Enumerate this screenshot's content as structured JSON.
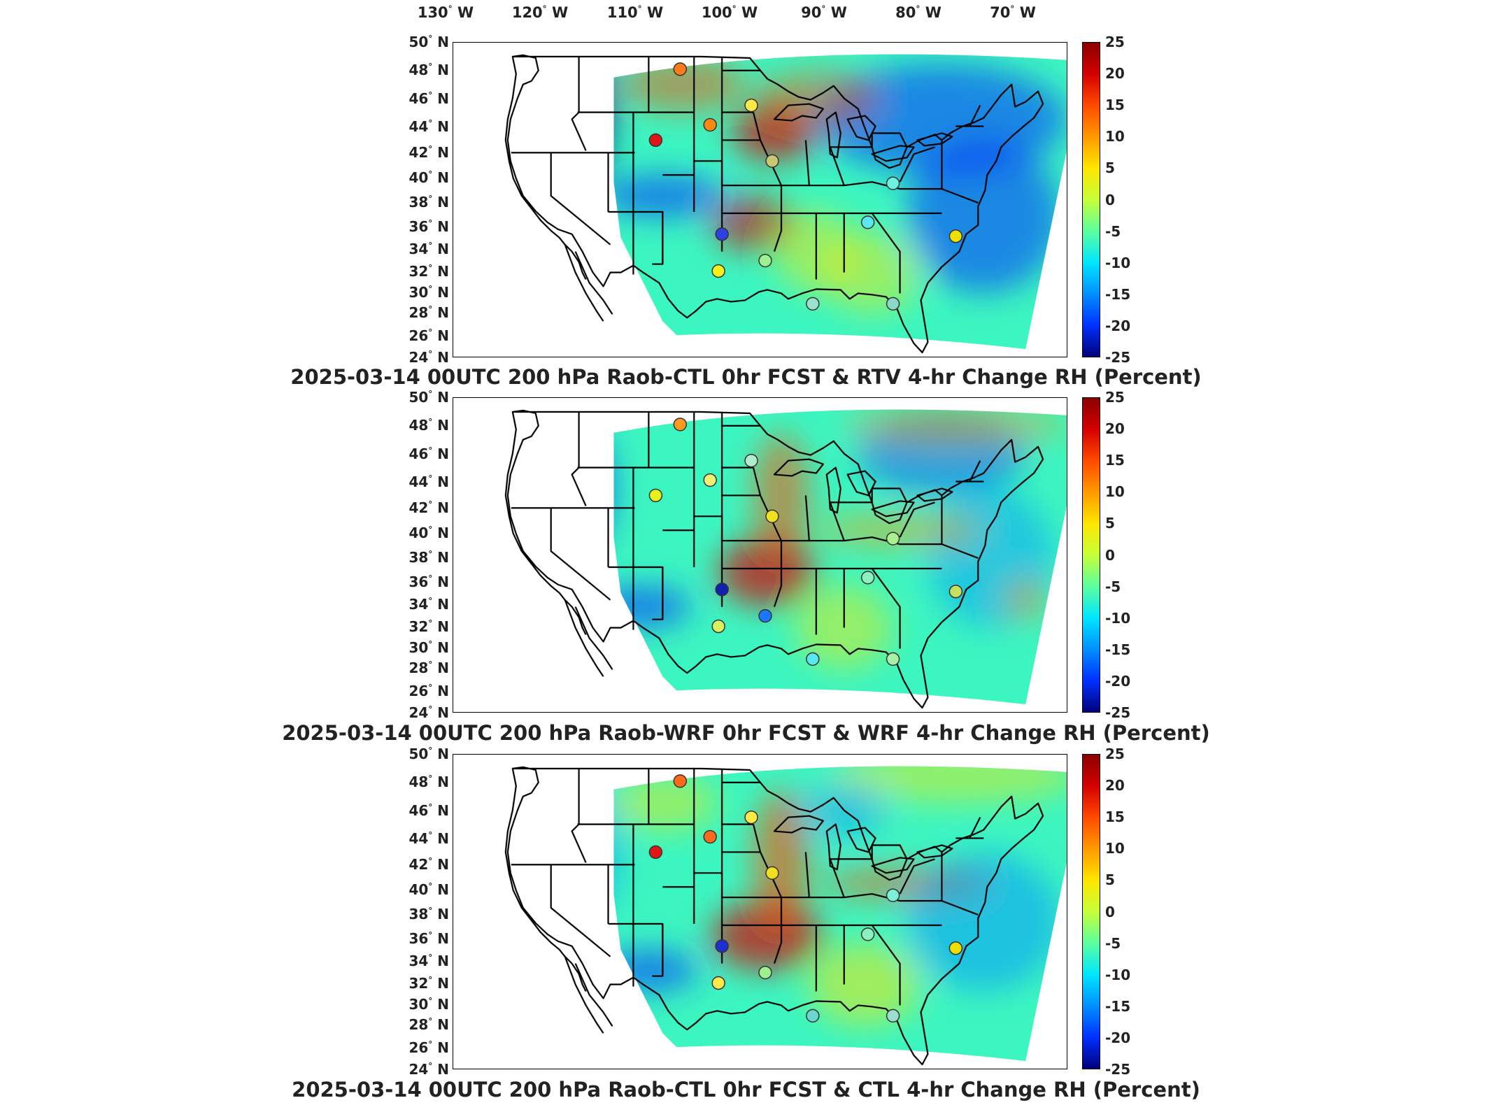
{
  "lon_labels": [
    {
      "deg": "130",
      "hem": "W"
    },
    {
      "deg": "120",
      "hem": "W"
    },
    {
      "deg": "110",
      "hem": "W"
    },
    {
      "deg": "100",
      "hem": "W"
    },
    {
      "deg": "90",
      "hem": "W"
    },
    {
      "deg": "80",
      "hem": "W"
    },
    {
      "deg": "70",
      "hem": "W"
    }
  ],
  "lat_labels": [
    {
      "deg": "50",
      "hem": "N"
    },
    {
      "deg": "48",
      "hem": "N"
    },
    {
      "deg": "46",
      "hem": "N"
    },
    {
      "deg": "44",
      "hem": "N"
    },
    {
      "deg": "42",
      "hem": "N"
    },
    {
      "deg": "40",
      "hem": "N"
    },
    {
      "deg": "38",
      "hem": "N"
    },
    {
      "deg": "36",
      "hem": "N"
    },
    {
      "deg": "34",
      "hem": "N"
    },
    {
      "deg": "32",
      "hem": "N"
    },
    {
      "deg": "30",
      "hem": "N"
    },
    {
      "deg": "28",
      "hem": "N"
    },
    {
      "deg": "26",
      "hem": "N"
    },
    {
      "deg": "24",
      "hem": "N"
    }
  ],
  "colorbar": {
    "ticks": [
      "25",
      "20",
      "15",
      "10",
      "5",
      "0",
      "-5",
      "-10",
      "-15",
      "-20",
      "-25"
    ],
    "colors": [
      "#8b0000",
      "#d40000",
      "#ff4a00",
      "#ff9a00",
      "#ffe600",
      "#c6ff38",
      "#5cffa0",
      "#00e6ff",
      "#0090ff",
      "#0030ff",
      "#00007a"
    ]
  },
  "panels": [
    {
      "title": "2025-03-14 00UTC 200 hPa Raob-CTL 0hr FCST & RTV 4-hr Change RH (Percent)",
      "stations": [
        {
          "id": "mt",
          "color": "#ff7a1a"
        },
        {
          "id": "wy-w",
          "color": "#e01515"
        },
        {
          "id": "wy-e",
          "color": "#ff8a10"
        },
        {
          "id": "sd",
          "color": "#ffe84a"
        },
        {
          "id": "ia",
          "color": "#c8c870"
        },
        {
          "id": "oh",
          "color": "#6ef0e0"
        },
        {
          "id": "tn",
          "color": "#5ce8f0"
        },
        {
          "id": "nc",
          "color": "#f0e000"
        },
        {
          "id": "nm",
          "color": "#3040e0"
        },
        {
          "id": "tx-w",
          "color": "#f6f020"
        },
        {
          "id": "tx-c",
          "color": "#9ef090"
        },
        {
          "id": "la",
          "color": "#9ae2d0"
        },
        {
          "id": "fl",
          "color": "#8ad8c8"
        }
      ]
    },
    {
      "title": "2025-03-14 00UTC 200 hPa Raob-WRF 0hr FCST & WRF 4-hr Change RH (Percent)",
      "stations": [
        {
          "id": "mt",
          "color": "#ff9a20"
        },
        {
          "id": "wy-w",
          "color": "#e8f020"
        },
        {
          "id": "wy-e",
          "color": "#f0f070"
        },
        {
          "id": "sd",
          "color": "#b0ecd0"
        },
        {
          "id": "ia",
          "color": "#f0e020"
        },
        {
          "id": "oh",
          "color": "#a8f090"
        },
        {
          "id": "tn",
          "color": "#8cf0c0"
        },
        {
          "id": "nc",
          "color": "#c8e060"
        },
        {
          "id": "nm",
          "color": "#1020b0"
        },
        {
          "id": "tx-w",
          "color": "#d8f060"
        },
        {
          "id": "tx-c",
          "color": "#1a78ff"
        },
        {
          "id": "la",
          "color": "#58e8f0"
        },
        {
          "id": "fl",
          "color": "#a8f0a8"
        }
      ]
    },
    {
      "title": "2025-03-14 00UTC 200 hPa Raob-CTL 0hr FCST & CTL 4-hr Change RH (Percent)",
      "stations": [
        {
          "id": "mt",
          "color": "#ff6a1a"
        },
        {
          "id": "wy-w",
          "color": "#e01515"
        },
        {
          "id": "wy-e",
          "color": "#ff6a1a"
        },
        {
          "id": "sd",
          "color": "#ffe84a"
        },
        {
          "id": "ia",
          "color": "#f0e020"
        },
        {
          "id": "oh",
          "color": "#7ef0d8"
        },
        {
          "id": "tn",
          "color": "#8cf0c0"
        },
        {
          "id": "nc",
          "color": "#f0e000"
        },
        {
          "id": "nm",
          "color": "#2030d0"
        },
        {
          "id": "tx-w",
          "color": "#ffe84a"
        },
        {
          "id": "tx-c",
          "color": "#9ef090"
        },
        {
          "id": "la",
          "color": "#6ad8d0"
        },
        {
          "id": "fl",
          "color": "#9ae0d0"
        }
      ]
    }
  ]
}
